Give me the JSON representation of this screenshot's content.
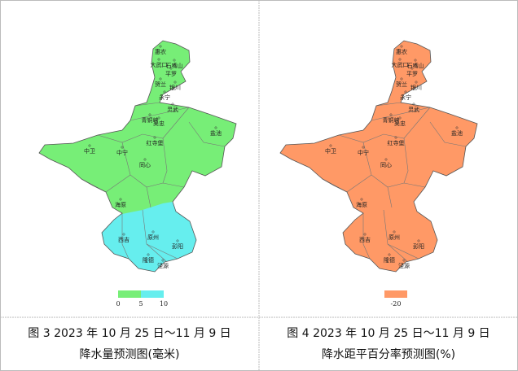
{
  "places": [
    "惠农",
    "大武口",
    "石嘴山",
    "平罗",
    "贺兰",
    "银川",
    "永宁",
    "灵武",
    "青铜峡",
    "吴忠",
    "盐池",
    "中卫",
    "中宁",
    "红寺堡",
    "同心",
    "海原",
    "西吉",
    "原州",
    "彭阳",
    "隆德",
    "泾源"
  ],
  "panels": [
    {
      "fill": [
        "#77ee77",
        "#66eeee"
      ],
      "legend": {
        "colors": [
          "#77ee77",
          "#66eeee"
        ],
        "values": [
          0,
          5,
          10
        ]
      },
      "caption": [
        "图 3 2023 年 10 月 25 日～11 月 9 日",
        "降水量预测图(毫米)"
      ]
    },
    {
      "fill": [
        "#ff9966",
        "#ff9966"
      ],
      "legend": {
        "colors": [
          "#ff9966"
        ],
        "values": [
          -20
        ]
      },
      "caption": [
        "图 4 2023 年 10 月 25 日～11 月 9 日",
        "降水距平百分率预测图(%)"
      ]
    }
  ]
}
